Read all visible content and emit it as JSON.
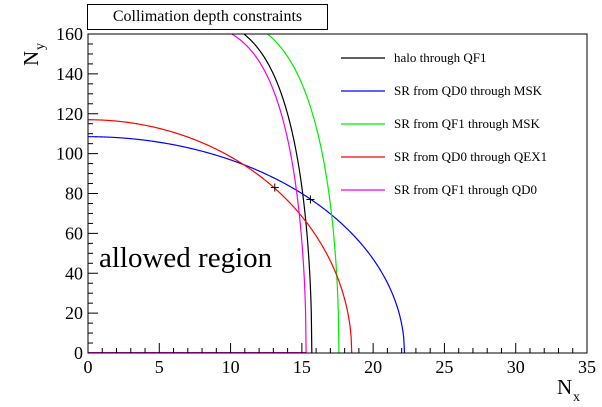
{
  "chart_data": {
    "type": "line",
    "title": "Collimation depth constraints",
    "xlabel": "N",
    "xlabel_sub": "x",
    "ylabel": "N",
    "ylabel_sub": "y",
    "xlim": [
      0,
      35
    ],
    "ylim": [
      0,
      160
    ],
    "x_ticks": [
      0,
      5,
      10,
      15,
      20,
      25,
      30,
      35
    ],
    "y_ticks": [
      0,
      20,
      40,
      60,
      80,
      100,
      120,
      140,
      160
    ],
    "legend_position": "top-right",
    "annotation": "allowed region",
    "series": [
      {
        "name": "halo through QF1",
        "color": "#000000",
        "a": 15.7,
        "b": 170,
        "p": 6
      },
      {
        "name": "SR from QD0 through MSK",
        "color": "#0000ff",
        "a": 22.2,
        "b": 108.5,
        "p": 2
      },
      {
        "name": "SR from QF1 through MSK",
        "color": "#00ee00",
        "a": 17.6,
        "b": 172,
        "p": 6
      },
      {
        "name": "SR from QD0 through QEX1",
        "color": "#ff0000",
        "a": 18.5,
        "b": 117,
        "p": 2
      },
      {
        "name": "SR from QF1 through QD0",
        "color": "#ee00ee",
        "a": 15.3,
        "b": 167,
        "p": 6
      }
    ],
    "markers": [
      {
        "x": 13.1,
        "y": 83
      },
      {
        "x": 15.6,
        "y": 77
      }
    ]
  }
}
